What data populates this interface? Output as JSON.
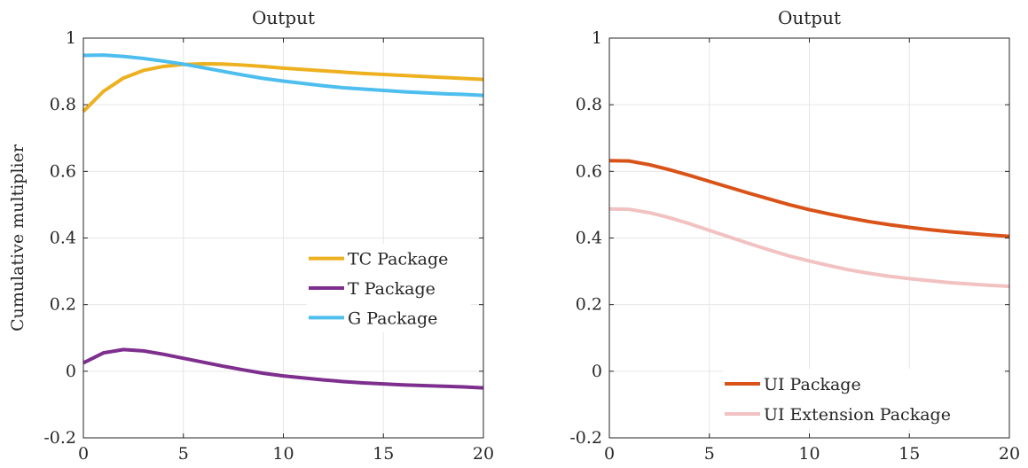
{
  "chart_data": [
    {
      "type": "line",
      "title": "Output",
      "ylabel": "Cumulative multiplier",
      "xlabel": "",
      "xlim": [
        0,
        20
      ],
      "ylim": [
        -0.2,
        1
      ],
      "xticks": [
        "0",
        "5",
        "10",
        "15",
        "20"
      ],
      "yticks": [
        "-0.2",
        "0",
        "0.2",
        "0.4",
        "0.6",
        "0.8",
        "1"
      ],
      "grid": true,
      "legend_position": "right",
      "x": [
        0,
        1,
        2,
        3,
        4,
        5,
        6,
        7,
        8,
        9,
        10,
        11,
        12,
        13,
        14,
        15,
        16,
        17,
        18,
        19,
        20
      ],
      "series": [
        {
          "name": "TC Package",
          "color": "#EDB120",
          "values": [
            0.78,
            0.84,
            0.88,
            0.903,
            0.915,
            0.921,
            0.923,
            0.922,
            0.919,
            0.915,
            0.91,
            0.906,
            0.902,
            0.898,
            0.894,
            0.891,
            0.888,
            0.885,
            0.882,
            0.879,
            0.876
          ]
        },
        {
          "name": "T Package",
          "color": "#7E2F8E",
          "values": [
            0.025,
            0.055,
            0.065,
            0.061,
            0.051,
            0.039,
            0.027,
            0.015,
            0.004,
            -0.006,
            -0.014,
            -0.02,
            -0.026,
            -0.031,
            -0.035,
            -0.038,
            -0.041,
            -0.043,
            -0.045,
            -0.047,
            -0.05
          ]
        },
        {
          "name": "G Package",
          "color": "#4DBEEE",
          "values": [
            0.948,
            0.949,
            0.945,
            0.939,
            0.931,
            0.922,
            0.911,
            0.9,
            0.889,
            0.879,
            0.871,
            0.864,
            0.857,
            0.851,
            0.847,
            0.843,
            0.839,
            0.836,
            0.833,
            0.831,
            0.828
          ]
        }
      ]
    },
    {
      "type": "line",
      "title": "Output",
      "ylabel": "",
      "xlabel": "",
      "xlim": [
        0,
        20
      ],
      "ylim": [
        -0.2,
        1
      ],
      "xticks": [
        "0",
        "5",
        "10",
        "15",
        "20"
      ],
      "yticks": [
        "-0.2",
        "0",
        "0.2",
        "0.4",
        "0.6",
        "0.8",
        "1"
      ],
      "grid": true,
      "legend_position": "bottom",
      "x": [
        0,
        1,
        2,
        3,
        4,
        5,
        6,
        7,
        8,
        9,
        10,
        11,
        12,
        13,
        14,
        15,
        16,
        17,
        18,
        19,
        20
      ],
      "series": [
        {
          "name": "UI Package",
          "color": "#D95319",
          "values": [
            0.632,
            0.631,
            0.62,
            0.605,
            0.588,
            0.57,
            0.552,
            0.534,
            0.517,
            0.5,
            0.485,
            0.472,
            0.46,
            0.449,
            0.44,
            0.432,
            0.425,
            0.419,
            0.414,
            0.409,
            0.405
          ]
        },
        {
          "name": "UI Extension Package",
          "color": "#F2C1C1",
          "values": [
            0.487,
            0.486,
            0.476,
            0.461,
            0.443,
            0.423,
            0.403,
            0.383,
            0.364,
            0.346,
            0.331,
            0.317,
            0.304,
            0.294,
            0.285,
            0.278,
            0.272,
            0.266,
            0.262,
            0.258,
            0.255
          ]
        }
      ]
    }
  ]
}
